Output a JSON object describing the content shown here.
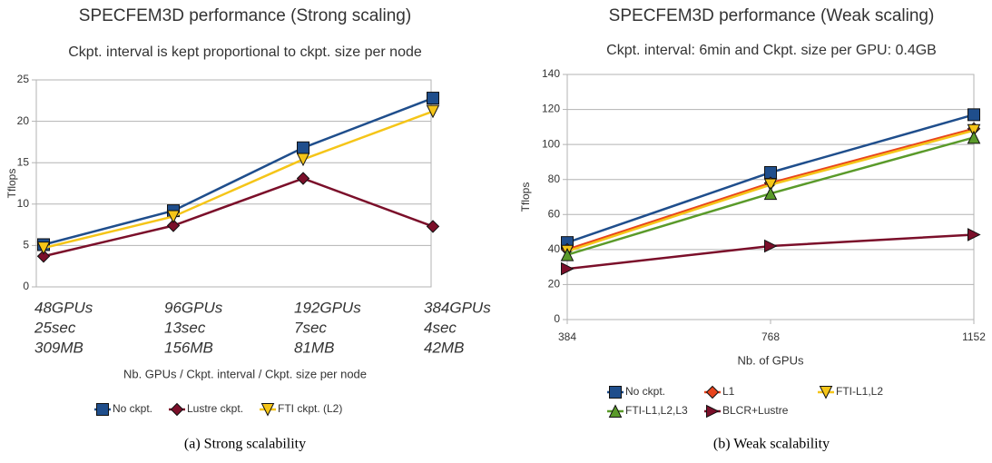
{
  "chart_data": [
    {
      "type": "line",
      "title": "SPECFEM3D performance (Strong scaling)",
      "subtitle": "Ckpt. interval is kept proportional to ckpt. size per node",
      "y_label": "Tflops",
      "x_label": "Nb. GPUs / Ckpt. interval / Ckpt. size per node",
      "categories": [
        [
          "48GPUs",
          "25sec",
          "309MB"
        ],
        [
          "96GPUs",
          "13sec",
          "156MB"
        ],
        [
          "192GPUs",
          "7sec",
          "81MB"
        ],
        [
          "384GPUs",
          "4sec",
          "42MB"
        ]
      ],
      "series": [
        {
          "name": "No ckpt.",
          "color": "#1f4e8c",
          "marker": "square",
          "values": [
            5.1,
            9.2,
            16.8,
            22.8
          ]
        },
        {
          "name": "Lustre ckpt.",
          "color": "#7b0f2a",
          "marker": "diamond",
          "values": [
            3.7,
            7.4,
            13.1,
            7.3
          ]
        },
        {
          "name": "FTI ckpt. (L2)",
          "color": "#f5c518",
          "marker": "triangle-down",
          "values": [
            4.7,
            8.5,
            15.4,
            21.2
          ]
        }
      ],
      "ylim": [
        0,
        25
      ],
      "yticks": [
        0,
        5,
        10,
        15,
        20,
        25
      ],
      "grid": true,
      "legend": "bottom",
      "caption": "(a) Strong scalability"
    },
    {
      "type": "line",
      "title": "SPECFEM3D performance (Weak scaling)",
      "subtitle": "Ckpt. interval: 6min and Ckpt. size per GPU: 0.4GB",
      "y_label": "Tflops",
      "x_label": "Nb. of GPUs",
      "x": [
        384,
        768,
        1152
      ],
      "xlim": [
        384,
        1152
      ],
      "xticks": [
        384,
        768,
        1152
      ],
      "series": [
        {
          "name": "No ckpt.",
          "color": "#1f4e8c",
          "marker": "square",
          "values": [
            44,
            84,
            117
          ]
        },
        {
          "name": "L1",
          "color": "#e8441c",
          "marker": "diamond",
          "values": [
            40,
            78,
            109
          ]
        },
        {
          "name": "FTI-L1,L2",
          "color": "#f5c518",
          "marker": "triangle-down",
          "values": [
            39,
            77,
            108
          ]
        },
        {
          "name": "FTI-L1,L2,L3",
          "color": "#5a9a2a",
          "marker": "triangle-up",
          "values": [
            37,
            72,
            104
          ]
        },
        {
          "name": "BLCR+Lustre",
          "color": "#7b0f2a",
          "marker": "triangle-right",
          "values": [
            29,
            42,
            48.5
          ]
        }
      ],
      "ylim": [
        0,
        140
      ],
      "yticks": [
        0,
        20,
        40,
        60,
        80,
        100,
        120,
        140
      ],
      "grid": true,
      "legend": "bottom",
      "caption": "(b) Weak scalability"
    }
  ]
}
